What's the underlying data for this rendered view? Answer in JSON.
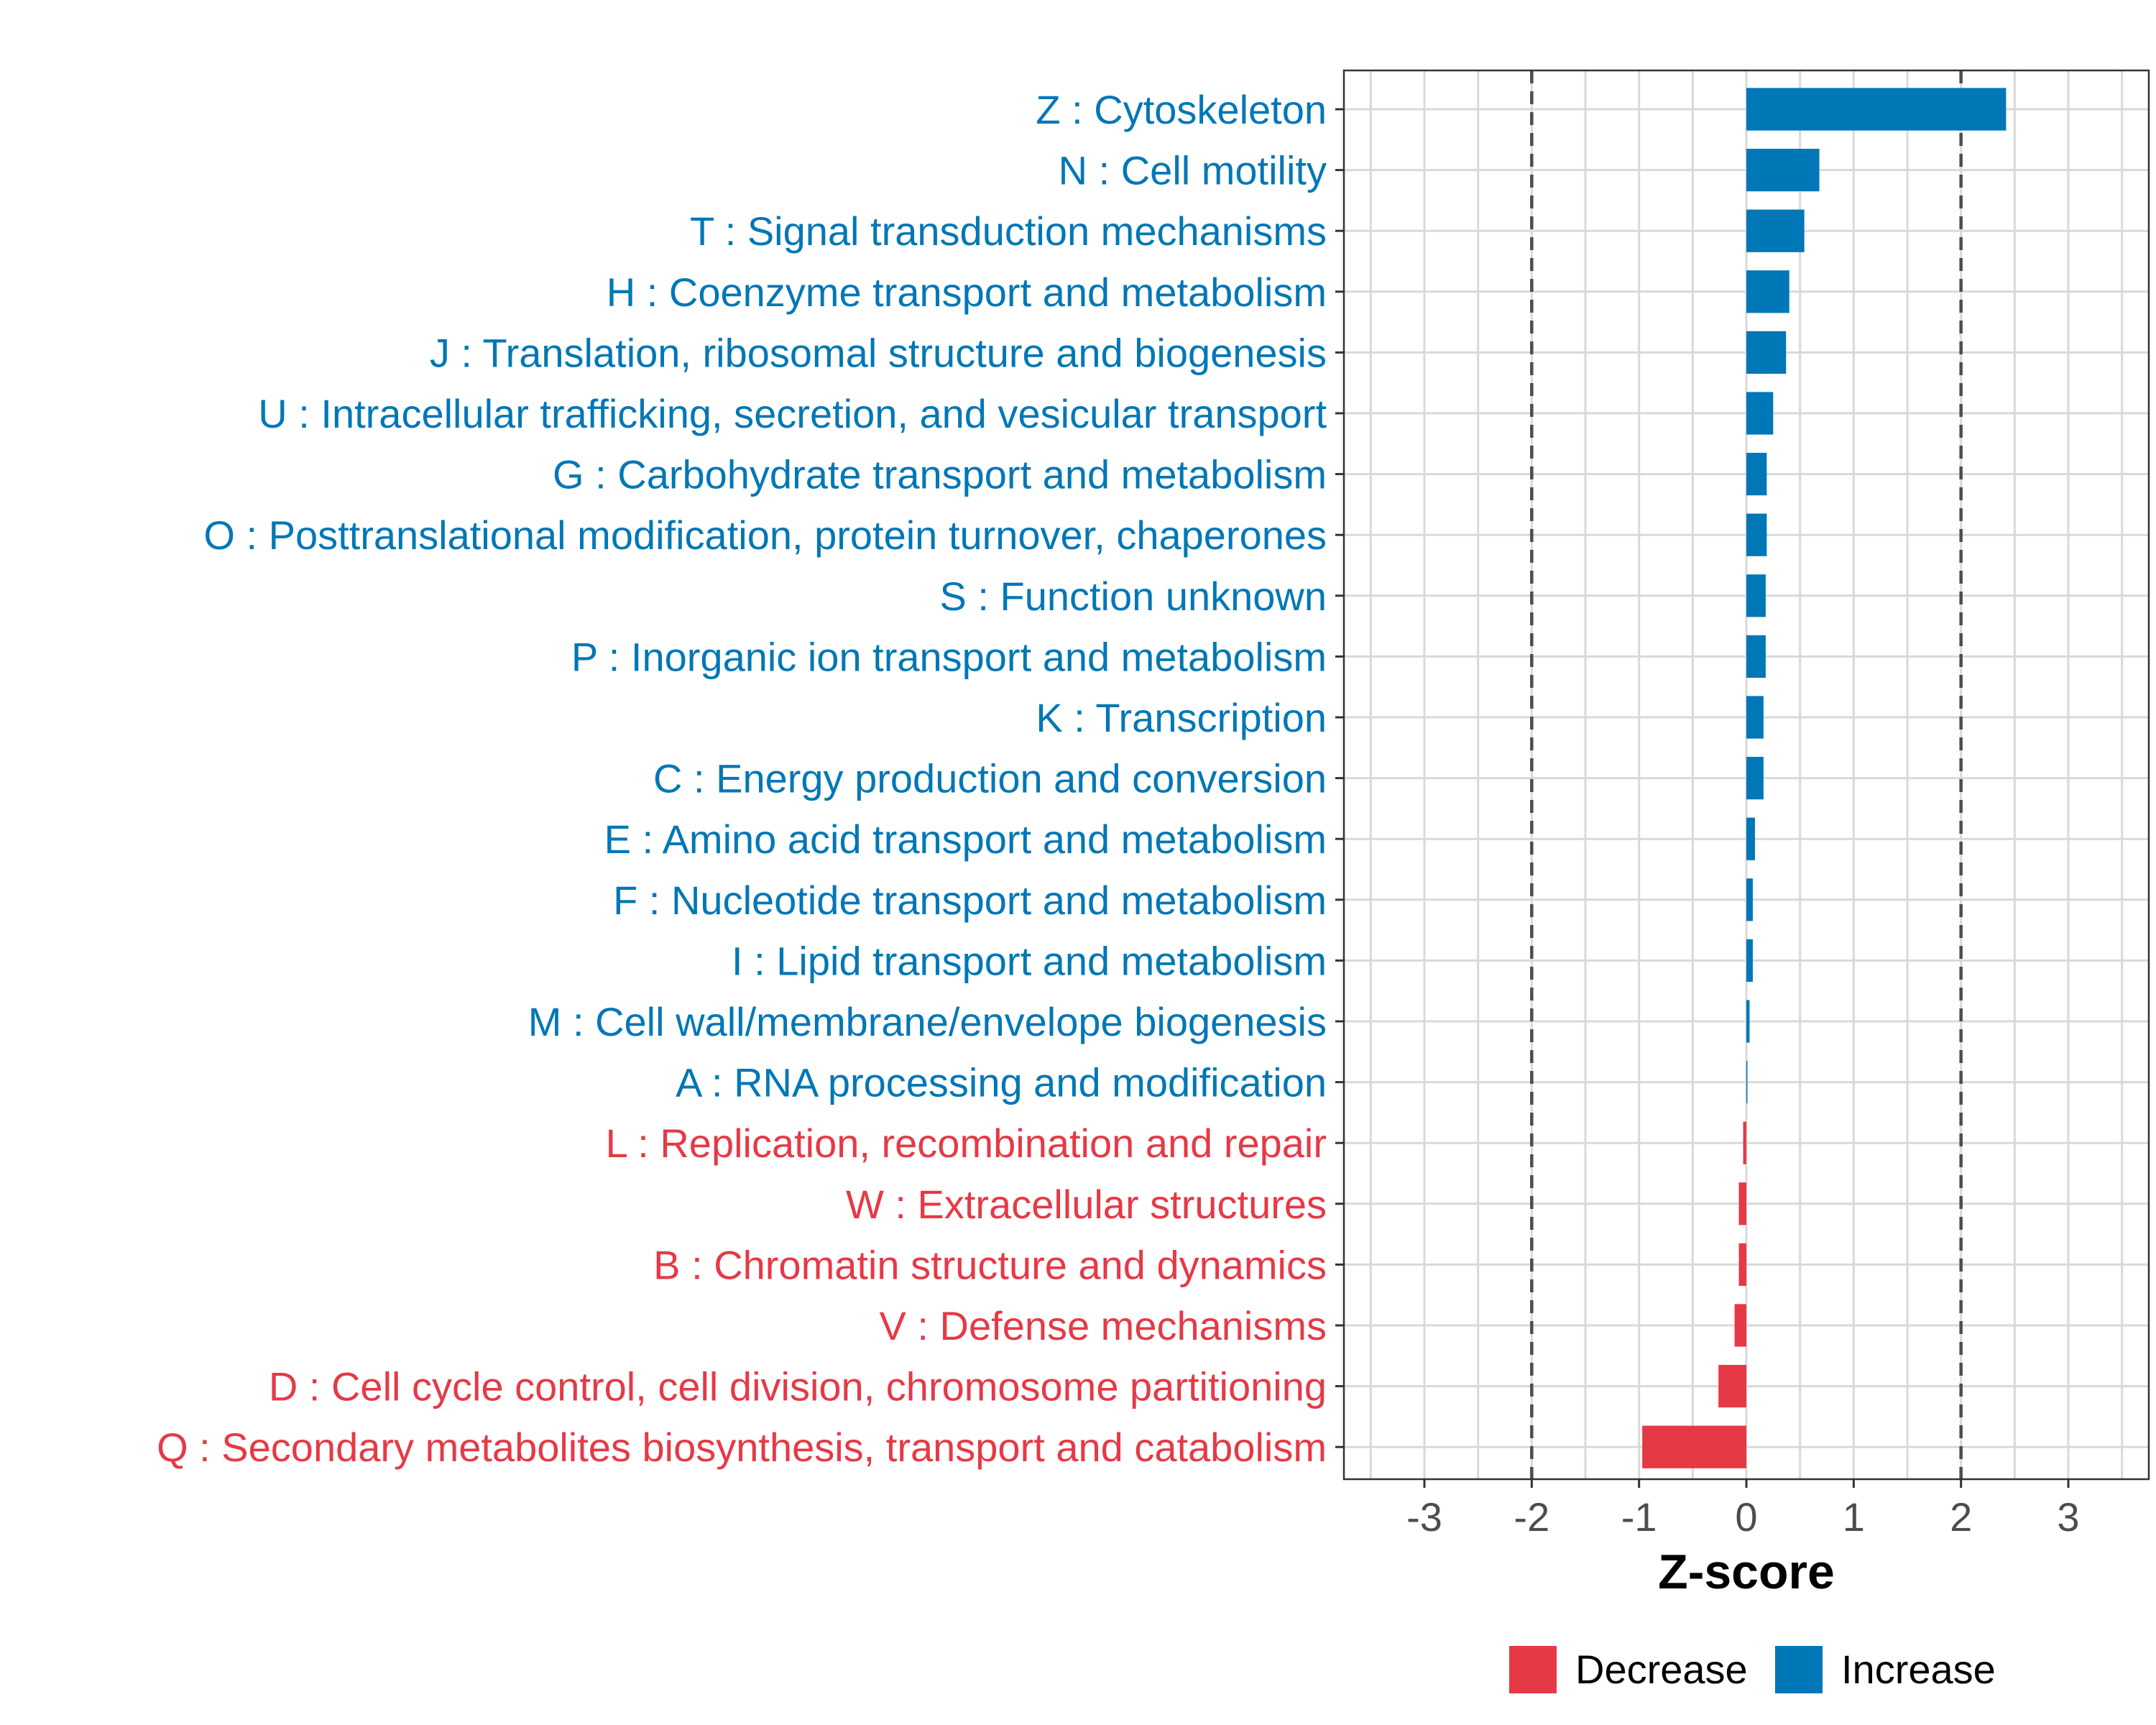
{
  "chart_data": {
    "type": "bar",
    "orientation": "horizontal",
    "xlabel": "Z-score",
    "xlim": [
      -3.75,
      3.75
    ],
    "x_ticks": [
      -3,
      -2,
      -1,
      0,
      1,
      2,
      3
    ],
    "reference_lines": [
      -2,
      2
    ],
    "grid": true,
    "categories": [
      "Z : Cytoskeleton",
      "N : Cell motility",
      "T : Signal transduction mechanisms",
      "H : Coenzyme transport and metabolism",
      "J : Translation, ribosomal structure and biogenesis",
      "U : Intracellular trafficking, secretion, and vesicular transport",
      "G : Carbohydrate transport and metabolism",
      "O : Posttranslational modification, protein turnover, chaperones",
      "S : Function unknown",
      "P : Inorganic ion transport and metabolism",
      "K : Transcription",
      "C : Energy production and conversion",
      "E : Amino acid transport and metabolism",
      "F : Nucleotide transport and metabolism",
      "I : Lipid transport and metabolism",
      "M : Cell wall/membrane/envelope biogenesis",
      "A : RNA processing and modification",
      "L : Replication, recombination and repair",
      "W : Extracellular structures",
      "B : Chromatin structure and dynamics",
      "V : Defense mechanisms",
      "D : Cell cycle control, cell division, chromosome partitioning",
      "Q : Secondary metabolites biosynthesis, transport and catabolism"
    ],
    "values": [
      2.42,
      0.68,
      0.54,
      0.4,
      0.37,
      0.25,
      0.19,
      0.19,
      0.18,
      0.18,
      0.16,
      0.16,
      0.08,
      0.06,
      0.06,
      0.03,
      0.01,
      -0.03,
      -0.07,
      -0.07,
      -0.11,
      -0.26,
      -0.97
    ],
    "legend": {
      "position": "bottom",
      "entries": [
        {
          "name": "Decrease",
          "color": "#e63946"
        },
        {
          "name": "Increase",
          "color": "#0077b6"
        }
      ]
    },
    "colors": {
      "increase": "#0077b6",
      "decrease": "#e63946",
      "grid": "#d9d9d9",
      "reference_line": "#4d4d4d",
      "panel_border": "#333333",
      "tick_label": "#4d4d4d"
    }
  }
}
